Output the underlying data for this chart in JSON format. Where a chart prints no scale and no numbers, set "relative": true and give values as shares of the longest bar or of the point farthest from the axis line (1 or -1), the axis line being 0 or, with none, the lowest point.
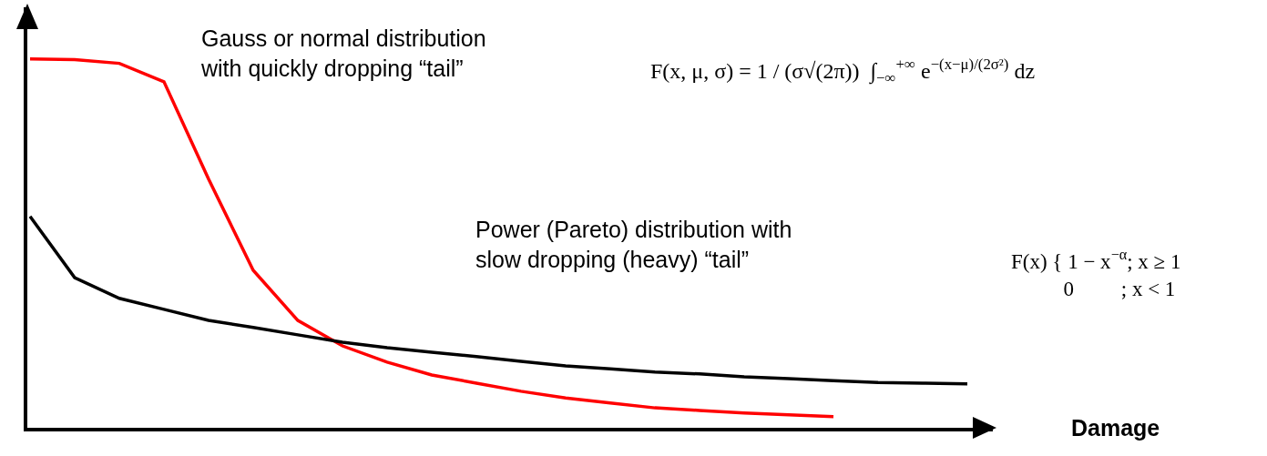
{
  "chart_data": {
    "type": "line",
    "relative": true,
    "xlabel": "Damage",
    "line_style": "solid",
    "marker": "none",
    "categories": [
      null,
      null,
      null,
      null,
      null,
      null,
      null,
      null,
      null,
      null,
      null,
      null,
      null,
      null,
      null,
      null,
      null,
      null,
      null,
      null,
      null,
      null
    ],
    "series": [
      {
        "color": "#ff0000",
        "values": [
          1.0,
          0.998,
          0.988,
          0.938,
          0.674,
          0.427,
          0.291,
          0.222,
          0.178,
          0.143,
          0.121,
          0.099,
          0.081,
          0.067,
          0.054,
          0.047,
          0.04,
          0.035,
          0.03,
          null,
          null,
          null
        ]
      },
      {
        "color": "#000000",
        "values": [
          0.573,
          0.407,
          0.351,
          0.321,
          0.291,
          0.272,
          0.252,
          0.232,
          0.217,
          0.205,
          0.193,
          0.18,
          0.168,
          0.16,
          0.151,
          0.146,
          0.138,
          0.133,
          0.128,
          0.123,
          0.121,
          0.119
        ]
      }
    ],
    "annotations": [
      "Gauss or normal distribution\nwith quickly dropping “tail”",
      "F(x, μ, σ) = 1 / (σ√(2π))  ∫$_{−∞}$$^{+∞}$ e$^{−(x−μ)/(2σ²)}$ dz",
      "Power (Pareto) distribution with\nslow dropping (heavy) “tail”",
      "F(x) { 1 − x$^{−α}$; x ≥ 1\n          0         ; x < 1"
    ]
  }
}
